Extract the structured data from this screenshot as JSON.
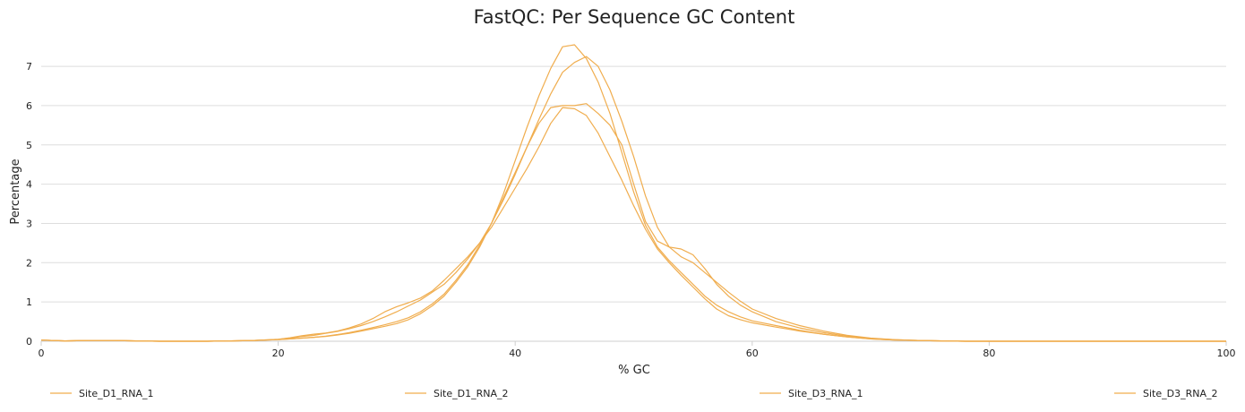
{
  "chart_data": {
    "type": "line",
    "title": "FastQC: Per Sequence GC Content",
    "xlabel": "% GC",
    "ylabel": "Percentage",
    "xlim": [
      0,
      100
    ],
    "ylim": [
      0,
      7.8
    ],
    "x_ticks": [
      0,
      20,
      40,
      60,
      80,
      100
    ],
    "y_ticks": [
      0,
      1,
      2,
      3,
      4,
      5,
      6,
      7
    ],
    "grid": "horizontal",
    "legend_position": "bottom",
    "line_color": "#f0ad4e",
    "x": [
      0,
      2,
      4,
      6,
      8,
      10,
      12,
      14,
      16,
      18,
      20,
      21,
      22,
      23,
      24,
      25,
      26,
      27,
      28,
      29,
      30,
      31,
      32,
      33,
      34,
      35,
      36,
      37,
      38,
      39,
      40,
      41,
      42,
      43,
      44,
      45,
      46,
      47,
      48,
      49,
      50,
      51,
      52,
      53,
      54,
      55,
      56,
      57,
      58,
      59,
      60,
      62,
      64,
      66,
      68,
      70,
      72,
      74,
      76,
      78,
      80,
      85,
      90,
      95,
      100
    ],
    "series": [
      {
        "name": "Site_D1_RNA_1",
        "values": [
          0.03,
          0.01,
          0.02,
          0.02,
          0.01,
          0.0,
          0.0,
          0.0,
          0.01,
          0.02,
          0.05,
          0.08,
          0.12,
          0.15,
          0.2,
          0.25,
          0.32,
          0.4,
          0.5,
          0.62,
          0.75,
          0.9,
          1.05,
          1.25,
          1.45,
          1.75,
          2.1,
          2.5,
          3.0,
          3.6,
          4.25,
          4.95,
          5.65,
          6.3,
          6.85,
          7.1,
          7.25,
          7.0,
          6.4,
          5.6,
          4.7,
          3.7,
          2.9,
          2.4,
          2.15,
          2.0,
          1.75,
          1.5,
          1.25,
          1.02,
          0.82,
          0.58,
          0.4,
          0.26,
          0.15,
          0.08,
          0.04,
          0.02,
          0.01,
          0.0,
          0.0,
          0.0,
          0.0,
          0.0,
          0.0
        ]
      },
      {
        "name": "Site_D1_RNA_2",
        "values": [
          0.03,
          0.01,
          0.02,
          0.02,
          0.01,
          0.0,
          0.0,
          0.0,
          0.01,
          0.02,
          0.04,
          0.06,
          0.08,
          0.1,
          0.13,
          0.17,
          0.22,
          0.28,
          0.35,
          0.42,
          0.5,
          0.6,
          0.75,
          0.95,
          1.2,
          1.55,
          1.95,
          2.45,
          3.0,
          3.65,
          4.3,
          4.95,
          5.55,
          5.95,
          6.0,
          6.0,
          6.05,
          5.8,
          5.5,
          5.0,
          4.0,
          3.05,
          2.55,
          2.4,
          2.35,
          2.2,
          1.85,
          1.45,
          1.15,
          0.92,
          0.75,
          0.5,
          0.34,
          0.22,
          0.13,
          0.07,
          0.04,
          0.02,
          0.01,
          0.0,
          0.0,
          0.0,
          0.0,
          0.0,
          0.0
        ]
      },
      {
        "name": "Site_D3_RNA_1",
        "values": [
          0.03,
          0.01,
          0.02,
          0.02,
          0.01,
          0.0,
          0.0,
          0.0,
          0.01,
          0.02,
          0.04,
          0.06,
          0.08,
          0.1,
          0.12,
          0.16,
          0.2,
          0.26,
          0.32,
          0.38,
          0.45,
          0.55,
          0.7,
          0.9,
          1.15,
          1.5,
          1.9,
          2.4,
          3.0,
          3.75,
          4.6,
          5.45,
          6.25,
          6.95,
          7.5,
          7.55,
          7.2,
          6.6,
          5.8,
          4.8,
          3.8,
          2.95,
          2.4,
          2.05,
          1.75,
          1.45,
          1.15,
          0.92,
          0.75,
          0.62,
          0.52,
          0.4,
          0.28,
          0.18,
          0.11,
          0.06,
          0.03,
          0.02,
          0.01,
          0.0,
          0.0,
          0.0,
          0.0,
          0.0,
          0.0
        ]
      },
      {
        "name": "Site_D3_RNA_2",
        "values": [
          0.03,
          0.01,
          0.02,
          0.02,
          0.01,
          0.0,
          0.0,
          0.0,
          0.01,
          0.02,
          0.05,
          0.09,
          0.14,
          0.18,
          0.21,
          0.26,
          0.34,
          0.44,
          0.58,
          0.75,
          0.88,
          0.98,
          1.1,
          1.28,
          1.55,
          1.85,
          2.15,
          2.5,
          2.9,
          3.4,
          3.9,
          4.4,
          4.95,
          5.55,
          5.95,
          5.92,
          5.75,
          5.3,
          4.7,
          4.1,
          3.45,
          2.85,
          2.35,
          2.0,
          1.68,
          1.38,
          1.08,
          0.82,
          0.65,
          0.55,
          0.47,
          0.36,
          0.26,
          0.18,
          0.11,
          0.06,
          0.03,
          0.02,
          0.01,
          0.0,
          0.0,
          0.0,
          0.0,
          0.0,
          0.0
        ]
      }
    ]
  }
}
